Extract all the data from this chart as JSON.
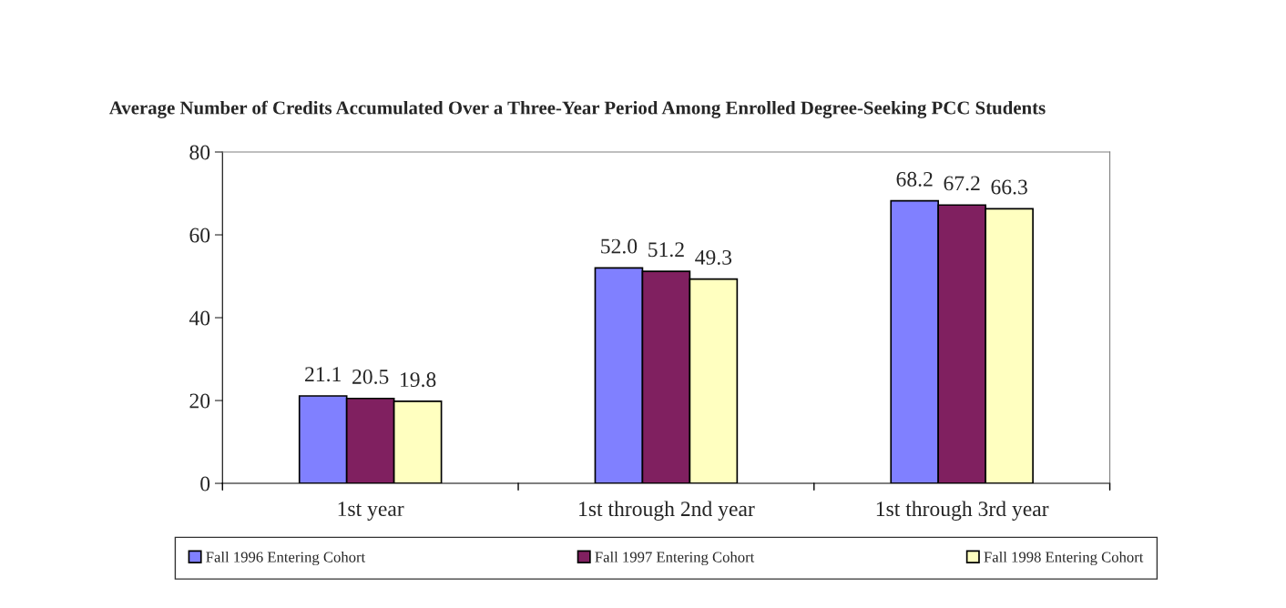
{
  "chart_data": {
    "type": "bar",
    "title": "Average Number of Credits Accumulated Over a Three-Year Period Among Enrolled Degree-Seeking PCC Students",
    "categories": [
      "1st year",
      "1st through 2nd year",
      "1st through 3rd year"
    ],
    "series": [
      {
        "name": "Fall 1996 Entering Cohort",
        "color": "#8080ff",
        "values": [
          21.1,
          52.0,
          68.2
        ],
        "value_labels": [
          "21.1",
          "52.0",
          "68.2"
        ]
      },
      {
        "name": "Fall 1997 Entering Cohort",
        "color": "#802060",
        "values": [
          20.5,
          51.2,
          67.2
        ],
        "value_labels": [
          "20.5",
          "51.2",
          "67.2"
        ]
      },
      {
        "name": "Fall 1998 Entering Cohort",
        "color": "#ffffc0",
        "values": [
          19.8,
          49.3,
          66.3
        ],
        "value_labels": [
          "19.8",
          "49.3",
          "66.3"
        ]
      }
    ],
    "ylim": [
      0,
      80
    ],
    "yticks": [
      0,
      20,
      40,
      60,
      80
    ],
    "grid": false,
    "legend": "bottom"
  }
}
